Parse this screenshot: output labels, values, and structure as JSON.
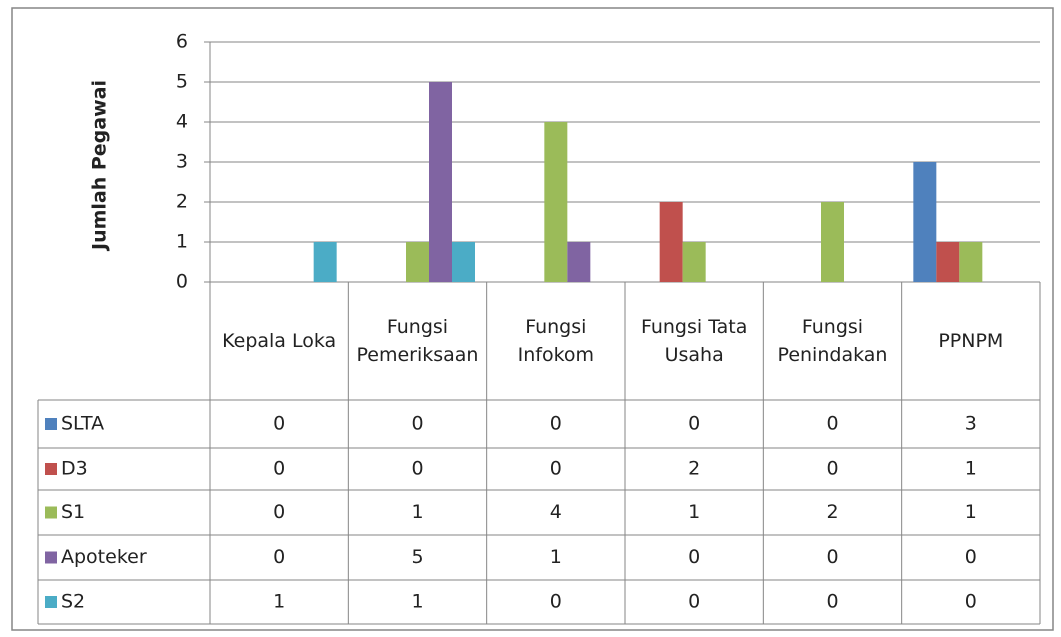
{
  "chart_data": {
    "type": "bar",
    "y_label": "Jumlah Pegawai",
    "categories": [
      "Kepala Loka",
      "Fungsi Pemeriksaan",
      "Fungsi Infokom",
      "Fungsi Tata Usaha",
      "Fungsi Penindakan",
      "PPNPM"
    ],
    "series": [
      {
        "name": "SLTA",
        "color": "#4f81bd",
        "values": [
          0,
          0,
          0,
          0,
          0,
          3
        ]
      },
      {
        "name": "D3",
        "color": "#c0504d",
        "values": [
          0,
          0,
          0,
          2,
          0,
          1
        ]
      },
      {
        "name": "S1",
        "color": "#9bbb59",
        "values": [
          0,
          1,
          4,
          1,
          2,
          1
        ]
      },
      {
        "name": "Apoteker",
        "color": "#8064a2",
        "values": [
          0,
          5,
          1,
          0,
          0,
          0
        ]
      },
      {
        "name": "S2",
        "color": "#4bacc6",
        "values": [
          1,
          1,
          0,
          0,
          0,
          0
        ]
      }
    ],
    "ylim": [
      0,
      6
    ],
    "yticks": [
      0,
      1,
      2,
      3,
      4,
      5,
      6
    ],
    "grid": true,
    "data_table": true
  }
}
